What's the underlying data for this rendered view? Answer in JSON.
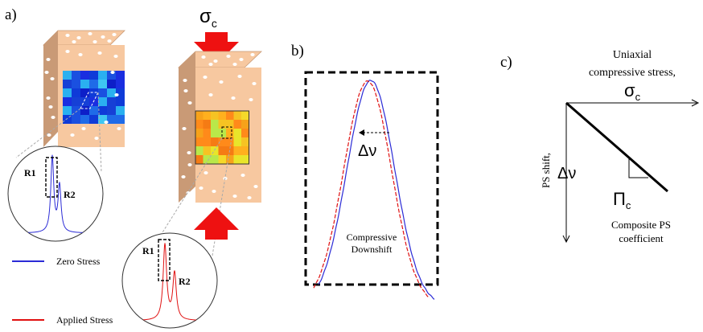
{
  "panel_a": {
    "label": "a)",
    "sigma": "σ",
    "sigma_sub": "c",
    "peak1": "R1",
    "peak2": "R2",
    "legend": [
      {
        "label": "Zero Stress",
        "color": "#2b2bd6"
      },
      {
        "label": "Applied Stress",
        "color": "#e01010"
      }
    ],
    "colors": {
      "block_face": "#f7c8a0",
      "block_side": "#c99a76",
      "arrow": "#ee1111"
    }
  },
  "panel_b": {
    "label": "b)",
    "shift_symbol": "Δν",
    "caption_line1": "Compressive",
    "caption_line2": "Downshift"
  },
  "panel_c": {
    "label": "c)",
    "x_title_line1": "Uniaxial",
    "x_title_line2": "compressive stress,",
    "x_symbol": "σ",
    "x_symbol_sub": "c",
    "y_title": "PS shift,",
    "y_symbol": "Δν",
    "slope_symbol": "Π",
    "slope_sub": "c",
    "slope_caption_line1": "Composite PS",
    "slope_caption_line2": "coefficient"
  }
}
